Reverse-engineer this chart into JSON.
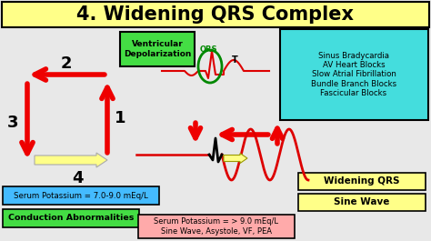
{
  "title": "4. Widening QRS Complex",
  "title_bg": "#ffff88",
  "bg_color": "#e8e8e8",
  "ventricular_label": "Ventricular\nDepolarization",
  "ventricular_bg": "#44dd44",
  "right_box_bg": "#44dddd",
  "right_box_text": "Sinus Bradycardia\nAV Heart Blocks\nSlow Atrial Fibrillation\nBundle Branch Blocks\nFascicular Blocks",
  "serum1_bg": "#44bbff",
  "serum1_text": "Serum Potassium = 7.0-9.0 mEq/L",
  "conduction_bg": "#44dd44",
  "conduction_text": "Conduction Abnormalities",
  "widening_bg": "#ffff88",
  "widening_text": "Widening QRS",
  "sine_bg": "#ffff88",
  "sine_text": "Sine Wave",
  "serum2_bg": "#ffaaaa",
  "serum2_text": "Serum Potassium = > 9.0 mEq/L\nSine Wave, Asystole, VF, PEA",
  "arrow_red": "#ee0000",
  "arrow_yellow_fill": "#ffff88",
  "ecg_red": "#dd0000",
  "ecg_black": "#000000",
  "circle_green": "#008800",
  "num1": "1",
  "num2": "2",
  "num3": "3",
  "num4": "4"
}
